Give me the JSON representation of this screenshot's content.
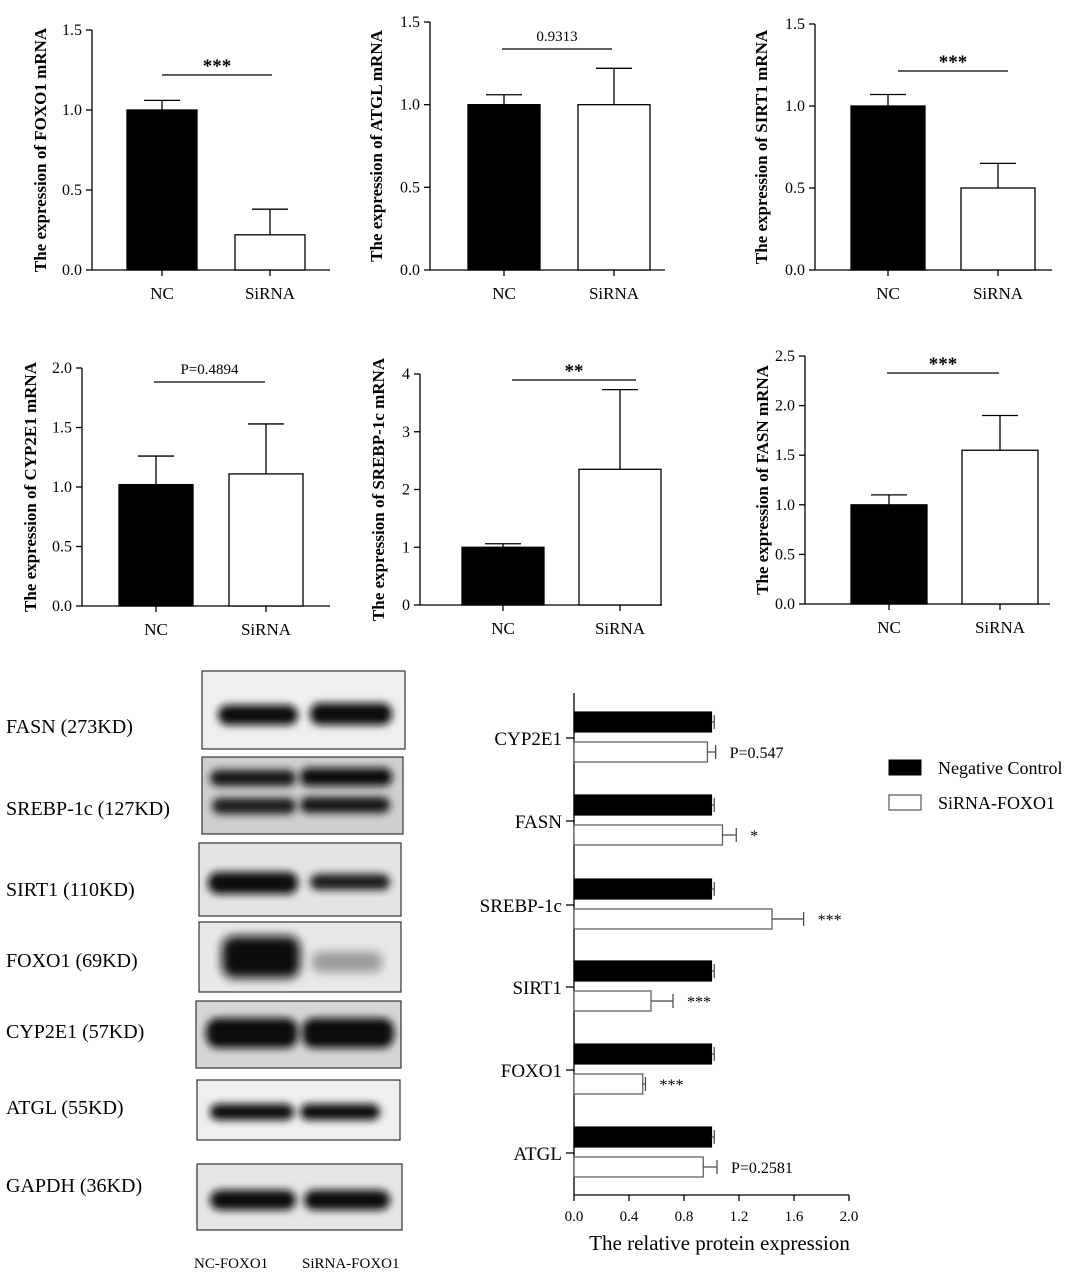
{
  "chart_data": [
    {
      "type": "bar",
      "ylabel": "The expression of FOXO1 mRNA",
      "categories": [
        "NC",
        "SiRNA"
      ],
      "values": [
        1.0,
        0.22
      ],
      "errors": [
        0.06,
        0.16
      ],
      "ylim": [
        0,
        1.5
      ],
      "yticks": [
        "0.0",
        "0.5",
        "1.0",
        "1.5"
      ],
      "annotation": "***",
      "annotation_bold": true,
      "fill": [
        "#000000",
        "#ffffff"
      ]
    },
    {
      "type": "bar",
      "ylabel": "The expression of ATGL mRNA",
      "categories": [
        "NC",
        "SiRNA"
      ],
      "values": [
        1.0,
        1.0
      ],
      "errors": [
        0.06,
        0.22
      ],
      "ylim": [
        0,
        1.5
      ],
      "yticks": [
        "0.0",
        "0.5",
        "1.0",
        "1.5"
      ],
      "annotation": "0.9313",
      "annotation_bold": false,
      "fill": [
        "#000000",
        "#ffffff"
      ]
    },
    {
      "type": "bar",
      "ylabel": "The expression of SIRT1 mRNA",
      "categories": [
        "NC",
        "SiRNA"
      ],
      "values": [
        1.0,
        0.5
      ],
      "errors": [
        0.07,
        0.15
      ],
      "ylim": [
        0,
        1.5
      ],
      "yticks": [
        "0.0",
        "0.5",
        "1.0",
        "1.5"
      ],
      "annotation": "***",
      "annotation_bold": true,
      "fill": [
        "#000000",
        "#ffffff"
      ]
    },
    {
      "type": "bar",
      "ylabel": "The expression of CYP2E1 mRNA",
      "categories": [
        "NC",
        "SiRNA"
      ],
      "values": [
        1.02,
        1.11
      ],
      "errors": [
        0.24,
        0.42
      ],
      "ylim": [
        0,
        2.0
      ],
      "yticks": [
        "0.0",
        "0.5",
        "1.0",
        "1.5",
        "2.0"
      ],
      "annotation": "P=0.4894",
      "annotation_bold": false,
      "fill": [
        "#000000",
        "#ffffff"
      ]
    },
    {
      "type": "bar",
      "ylabel": "The expression of SREBP-1c mRNA",
      "categories": [
        "NC",
        "SiRNA"
      ],
      "values": [
        1.0,
        2.35
      ],
      "errors": [
        0.06,
        1.38
      ],
      "ylim": [
        0,
        4
      ],
      "yticks": [
        "0",
        "1",
        "2",
        "3",
        "4"
      ],
      "annotation": "**",
      "annotation_bold": true,
      "fill": [
        "#000000",
        "#ffffff"
      ]
    },
    {
      "type": "bar",
      "ylabel": "The expression of FASN mRNA",
      "categories": [
        "NC",
        "SiRNA"
      ],
      "values": [
        1.0,
        1.55
      ],
      "errors": [
        0.1,
        0.35
      ],
      "ylim": [
        0,
        2.5
      ],
      "yticks": [
        "0.0",
        "0.5",
        "1.0",
        "1.5",
        "2.0",
        "2.5"
      ],
      "annotation": "***",
      "annotation_bold": true,
      "fill": [
        "#000000",
        "#ffffff"
      ]
    },
    {
      "type": "bar",
      "orientation": "horizontal",
      "xlabel": "The relative protein expression",
      "xlim": [
        0,
        2.0
      ],
      "xticks": [
        "0.0",
        "0.4",
        "0.8",
        "1.2",
        "1.6",
        "2.0"
      ],
      "categories": [
        "CYP2E1",
        "FASN",
        "SREBP-1c",
        "SIRT1",
        "FOXO1",
        "ATGL"
      ],
      "series": [
        {
          "name": "Negative Control",
          "values": [
            1.0,
            1.0,
            1.0,
            1.0,
            1.0,
            1.0
          ],
          "errors": [
            0.02,
            0.02,
            0.02,
            0.02,
            0.02,
            0.02
          ],
          "color": "#000000"
        },
        {
          "name": "SiRNA-FOXO1",
          "values": [
            0.97,
            1.08,
            1.44,
            0.56,
            0.5,
            0.94
          ],
          "errors": [
            0.06,
            0.1,
            0.23,
            0.16,
            0.02,
            0.1
          ],
          "color": "#ffffff"
        }
      ],
      "annotations": [
        "P=0.547",
        "*",
        "***",
        "***",
        "***",
        "P=0.2581"
      ],
      "legend_position": "right"
    }
  ],
  "western_blot": {
    "bands": [
      "FASN (273KD)",
      "SREBP-1c (127KD)",
      "SIRT1 (110KD)",
      "FOXO1 (69KD)",
      "CYP2E1 (57KD)",
      "ATGL (55KD)",
      "GAPDH (36KD)"
    ],
    "lanes": [
      "NC-FOXO1",
      "SiRNA-FOXO1"
    ]
  }
}
